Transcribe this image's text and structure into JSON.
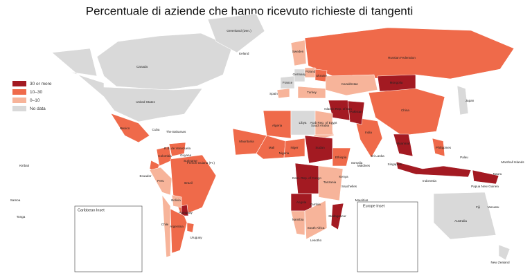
{
  "title": "Percentuale di aziende che hanno ricevuto richieste di tangenti",
  "legend": [
    {
      "label": "30 or more",
      "color": "#a31a22"
    },
    {
      "label": "10–30",
      "color": "#ef6a4a"
    },
    {
      "label": "0–10",
      "color": "#f7b49a"
    },
    {
      "label": "No data",
      "color": "#d9d9d9"
    }
  ],
  "regions": [
    {
      "name": "Canada",
      "group": 3
    },
    {
      "name": "Greenland (Den.)",
      "group": 3
    },
    {
      "name": "United States",
      "group": 3
    },
    {
      "name": "Mexico",
      "group": 1
    },
    {
      "name": "Colombia",
      "group": 1
    },
    {
      "name": "R.B. de Venezuela",
      "group": 1
    },
    {
      "name": "Ecuador",
      "group": 1
    },
    {
      "name": "Peru",
      "group": 2
    },
    {
      "name": "Brazil",
      "group": 1
    },
    {
      "name": "Bolivia",
      "group": 2
    },
    {
      "name": "Paraguay",
      "group": 0
    },
    {
      "name": "Chile",
      "group": 2
    },
    {
      "name": "Argentina",
      "group": 1
    },
    {
      "name": "Uruguay",
      "group": 1
    },
    {
      "name": "Russian Federation",
      "group": 1
    },
    {
      "name": "Kazakhstan",
      "group": 2
    },
    {
      "name": "Mongolia",
      "group": 0
    },
    {
      "name": "China",
      "group": 1
    },
    {
      "name": "India",
      "group": 1
    },
    {
      "name": "Pakistan",
      "group": 0
    },
    {
      "name": "Islamic Rep. of Iran",
      "group": 0
    },
    {
      "name": "Turkey",
      "group": 2
    },
    {
      "name": "Saudi Arabia",
      "group": 2
    },
    {
      "name": "Algeria",
      "group": 1
    },
    {
      "name": "Libya",
      "group": 3
    },
    {
      "name": "Arab Rep. of Egypt",
      "group": 2
    },
    {
      "name": "Mauritania",
      "group": 1
    },
    {
      "name": "Mali",
      "group": 1
    },
    {
      "name": "Niger",
      "group": 1
    },
    {
      "name": "Sudan",
      "group": 0
    },
    {
      "name": "Ethiopia",
      "group": 1
    },
    {
      "name": "Dem. Rep. of Congo",
      "group": 0
    },
    {
      "name": "Angola",
      "group": 0
    },
    {
      "name": "Tanzania",
      "group": 2
    },
    {
      "name": "Namibia",
      "group": 2
    },
    {
      "name": "South Africa",
      "group": 2
    },
    {
      "name": "Madagascar",
      "group": 0
    },
    {
      "name": "Myanmar",
      "group": 0
    },
    {
      "name": "Indonesia",
      "group": 0
    },
    {
      "name": "Philippines",
      "group": 1
    },
    {
      "name": "Papua New Guinea",
      "group": 0
    },
    {
      "name": "Japan",
      "group": 3
    },
    {
      "name": "Australia",
      "group": 3
    },
    {
      "name": "New Zealand",
      "group": 3
    },
    {
      "name": "Spain",
      "group": 2
    },
    {
      "name": "France",
      "group": 3
    },
    {
      "name": "Germany",
      "group": 3
    },
    {
      "name": "Poland",
      "group": 2
    },
    {
      "name": "Ukraine",
      "group": 1
    },
    {
      "name": "Sweden",
      "group": 2
    }
  ],
  "place_labels": [
    "The Bahamas",
    "Cuba",
    "Guyana",
    "Suriname",
    "French Guiana (Fr.)",
    "Kiribati",
    "Samoa",
    "Tonga",
    "Fiji",
    "Vanuatu",
    "Nauru",
    "Palau",
    "Maldives",
    "Sri Lanka",
    "Seychelles",
    "Mauritius",
    "Singapore",
    "Iceland",
    "Somalia",
    "Nigeria",
    "Kenya",
    "Zambia",
    "Lesotho",
    "Marshall Islands"
  ],
  "insets": [
    "Caribbean Inset",
    "Europe Inset"
  ]
}
